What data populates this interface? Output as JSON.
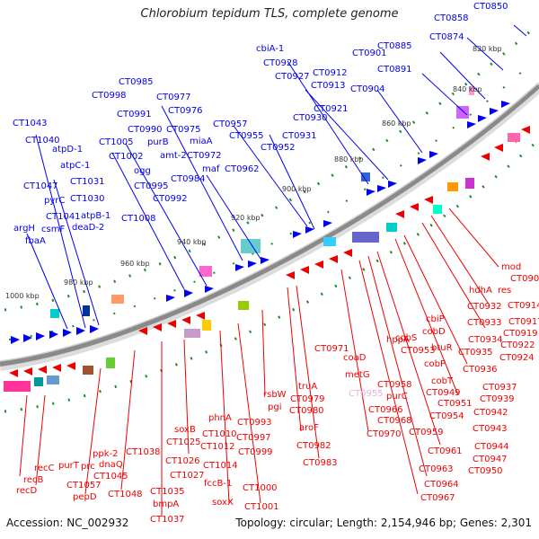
{
  "title": "Chlorobium tepidum TLS, complete genome",
  "footer": {
    "accession": "Accession: NC_002932",
    "summary": "Topology: circular; Length: 2,154,946 bp; Genes: 2,301"
  },
  "colors": {
    "forward_genes": "#0000ee",
    "reverse_genes": "#ee0000",
    "backbone": "#8a8a8a",
    "ticks": "#228b22",
    "faded_label": "#f0b0d8"
  },
  "scale_labels": [
    "820 kbp",
    "840 kbp",
    "860 kbp",
    "880 kbp",
    "900 kbp",
    "920 kbp",
    "940 kbp",
    "960 kbp",
    "980 kbp",
    "1000 kbp"
  ],
  "forward_labels": [
    "CT0850",
    "CT0858",
    "CT0874",
    "CT0885",
    "CT0891",
    "CT0901",
    "CT0904",
    "cbiA-1",
    "CT0928",
    "CT0927",
    "CT0912",
    "CT0913",
    "CT0921",
    "CT0930",
    "CT0931",
    "CT0957",
    "CT0955",
    "CT0952",
    "CT0962",
    "CT0985",
    "CT0977",
    "CT0976",
    "CT0998",
    "CT0991",
    "CT0990",
    "CT0975",
    "miaA",
    "CT0972",
    "maf",
    "CT1005",
    "purB",
    "amt-2",
    "CT1002",
    "ogg",
    "CT0984",
    "CT0995",
    "CT0992",
    "CT1008",
    "CT1043",
    "CT1040",
    "atpD-1",
    "atpC-1",
    "CT1047",
    "CT1031",
    "pyrC",
    "CT1030",
    "CT1041",
    "atpB-1",
    "csmF",
    "deaD-2",
    "argH",
    "fbaA"
  ],
  "reverse_labels": [
    "mod",
    "CT0909",
    "res",
    "hdhA",
    "CT0914",
    "CT0932",
    "CT0917",
    "CT0933",
    "CT0919",
    "CT0934",
    "CT0922",
    "CT0935",
    "CT0924",
    "cbiP",
    "cobD",
    "btuR",
    "cobS",
    "CT0953",
    "hppA",
    "cobP",
    "CT0936",
    "CT0971",
    "coaD",
    "metG",
    "CT0958",
    "cobT",
    "CT0949",
    "CT0937",
    "purC",
    "CT0951",
    "CT0939",
    "CT0966",
    "CT0954",
    "CT0942",
    "CT0968",
    "CT0959",
    "CT0970",
    "CT0943",
    "CT0944",
    "CT0961",
    "CT0947",
    "CT0963",
    "CT0950",
    "CT0964",
    "CT0967",
    "truA",
    "CT0979",
    "rsbW",
    "CT0980",
    "pgi",
    "aroF",
    "CT0982",
    "CT0983",
    "CT0993",
    "phnA",
    "CT1010",
    "CT0997",
    "CT1012",
    "CT0999",
    "CT1014",
    "CT1000",
    "CT1001",
    "soxB",
    "CT1025",
    "CT1026",
    "CT1027",
    "fccB-1",
    "soxX",
    "CT1038",
    "CT1035",
    "bmpA",
    "CT1037",
    "ppk-2",
    "dnaQ",
    "CT1045",
    "CT1048",
    "recC",
    "recB",
    "recD",
    "purT",
    "prc",
    "CT1057",
    "pepD"
  ],
  "faded_label": "CT0955"
}
